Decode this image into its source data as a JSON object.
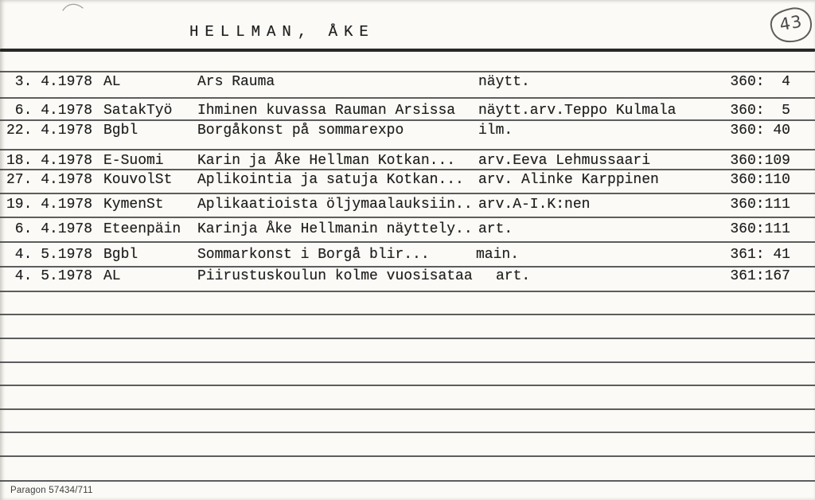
{
  "header": {
    "title": "HELLMAN, ÅKE",
    "page_number": "43"
  },
  "rows": [
    {
      "date": " 3. 4.1978",
      "source": "AL",
      "title": "Ars Rauma",
      "annotation": "näytt.",
      "ref": "360:  4"
    },
    {
      "date": " 6. 4.1978",
      "source": "SatakTyö",
      "title": "Ihminen kuvassa Rauman Arsissa",
      "annotation": "näytt.arv.Teppo Kulmala",
      "ref": "360:  5"
    },
    {
      "date": "22. 4.1978",
      "source": "Bgbl",
      "title": "Borgåkonst på sommarexpo",
      "annotation": "ilm.",
      "ref": "360: 40"
    },
    {
      "date": "18. 4.1978",
      "source": "E-Suomi",
      "title": "Karin ja Åke Hellman Kotkan...",
      "annotation": "arv.Eeva Lehmussaari",
      "ref": "360:109"
    },
    {
      "date": "27. 4.1978",
      "source": "KouvolSt",
      "title": "Aplikointia ja satuja Kotkan...",
      "annotation": "arv. Alinke Karppinen",
      "ref": "360:110"
    },
    {
      "date": "19. 4.1978",
      "source": "KymenSt",
      "title": "Aplikaatioista öljymaalauksiin..",
      "annotation": "arv.A-I.K:nen",
      "ref": "360:111"
    },
    {
      "date": " 6. 4.1978",
      "source": "Eteenpäin",
      "title": "Karinja Åke Hellmanin näyttely..",
      "annotation": "art.",
      "ref": "360:111"
    },
    {
      "date": " 4. 5.1978",
      "source": "Bgbl",
      "title": "Sommarkonst i Borgå blir...",
      "annotation": "main.",
      "ref": "361: 41"
    },
    {
      "date": " 4. 5.1978",
      "source": "AL",
      "title": "Piirustuskoulun kolme vuosisataa",
      "annotation": "art.",
      "ref": "361:167"
    }
  ],
  "footer": {
    "imprint": "Paragon 57434/711"
  },
  "colors": {
    "paper": "#fbfaf6",
    "ink": "#1f1f1f",
    "rule": "#3a3a3a",
    "pen": "#5d5d5d"
  }
}
